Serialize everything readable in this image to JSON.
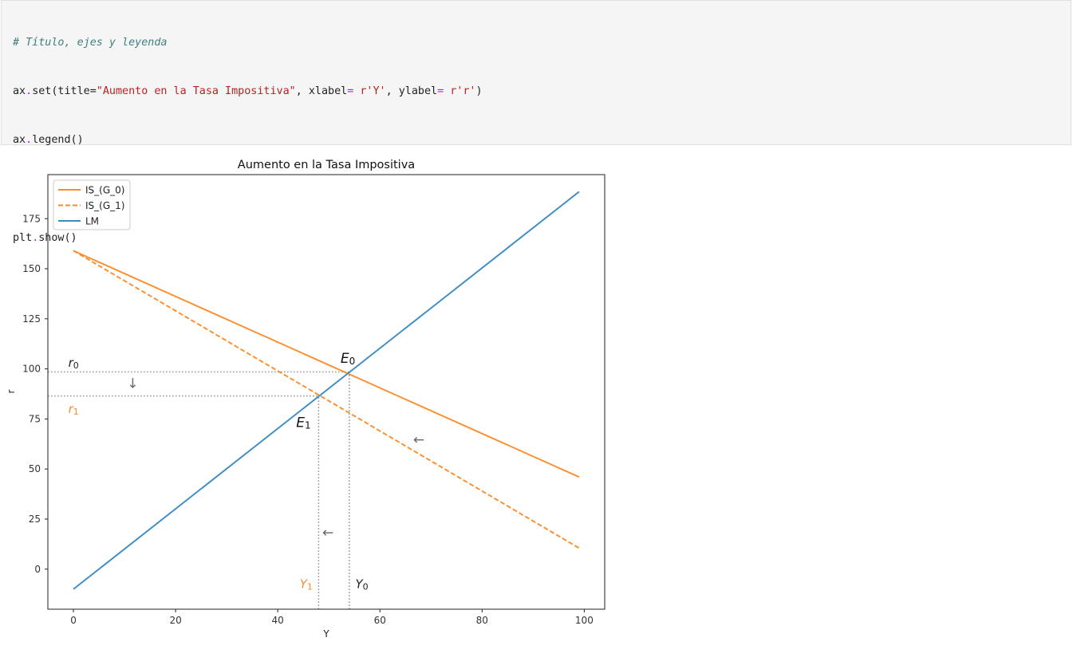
{
  "code_cell": {
    "lines": [
      {
        "comment": "# Título, ejes y leyenda"
      },
      {
        "pre": "ax",
        "op1": ".",
        "mid1": "set(title=",
        "str1": "\"Aumento en la Tasa Impositiva\"",
        "mid2": ", xlabel",
        "op2": "=",
        "str2": " r'Y'",
        "mid3": ", ylabel",
        "op3": "=",
        "str3": " r'r'",
        "post": ")"
      },
      {
        "pre": "ax",
        "op1": ".",
        "mid1": "legend()"
      },
      {
        "pre": ""
      },
      {
        "pre": "plt",
        "op1": ".",
        "mid1": "show()"
      }
    ]
  },
  "chart_data": {
    "type": "line",
    "title": "Aumento en la Tasa Impositiva",
    "xlabel": "Y",
    "ylabel": "r",
    "xlim": [
      -5,
      104
    ],
    "ylim": [
      -20,
      197
    ],
    "xticks": [
      0,
      20,
      40,
      60,
      80,
      100
    ],
    "yticks": [
      0,
      25,
      50,
      75,
      100,
      125,
      150,
      175
    ],
    "grid": false,
    "legend_position": "top-left",
    "series": [
      {
        "name": "IS_(G_0)",
        "color": "#ff8c2a",
        "style": "solid",
        "x": [
          0,
          99
        ],
        "y": [
          159,
          46
        ]
      },
      {
        "name": "IS_(G_1)",
        "color": "#ff8c2a",
        "style": "dashed",
        "x": [
          0,
          99
        ],
        "y": [
          159,
          10.5
        ]
      },
      {
        "name": "LM",
        "color": "#3c8cc3",
        "style": "solid",
        "x": [
          0,
          99
        ],
        "y": [
          -10,
          188.5
        ]
      }
    ],
    "guides": [
      {
        "x1": -5,
        "y1": 98.5,
        "x2": 54,
        "y2": 98.5
      },
      {
        "x1": -5,
        "y1": 86.5,
        "x2": 48,
        "y2": 86.5
      },
      {
        "x1": 54,
        "y1": -20,
        "x2": 54,
        "y2": 98.5
      },
      {
        "x1": 48,
        "y1": -20,
        "x2": 48,
        "y2": 86.5
      }
    ],
    "annotations": [
      {
        "base": "E",
        "sub": "0",
        "x": 52.3,
        "y": 103,
        "color": "#111111",
        "size": 17
      },
      {
        "base": "E",
        "sub": "1",
        "x": 43.6,
        "y": 71,
        "color": "#111111",
        "size": 17
      },
      {
        "base": "r",
        "sub": "0",
        "x": -1,
        "y": 101,
        "color": "#222222",
        "size": 15
      },
      {
        "base": "r",
        "sub": "1",
        "x": -1,
        "y": 78,
        "color": "#ff8c2a",
        "size": 15
      },
      {
        "base": "Y",
        "sub": "1",
        "x": 44.3,
        "y": -9.5,
        "color": "#ff8c2a",
        "size": 15
      },
      {
        "base": "Y",
        "sub": "0",
        "x": 55.2,
        "y": -9.5,
        "color": "#222222",
        "size": 15
      },
      {
        "base": "↓",
        "sub": "",
        "x": 10.5,
        "y": 90.5,
        "color": "#666666",
        "size": 17
      },
      {
        "base": "←",
        "sub": "",
        "x": 66.5,
        "y": 62.5,
        "color": "#666666",
        "size": 17
      },
      {
        "base": "←",
        "sub": "",
        "x": 48.7,
        "y": 16,
        "color": "#666666",
        "size": 17
      }
    ]
  }
}
